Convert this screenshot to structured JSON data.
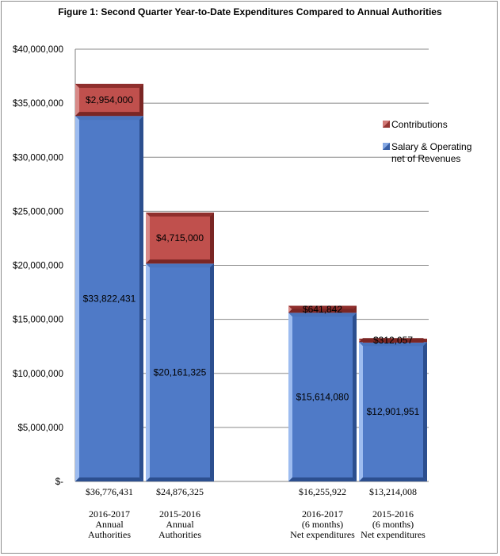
{
  "chart_data": {
    "type": "bar",
    "stacked": true,
    "title": "Figure 1: Second Quarter Year-to-Date Expenditures Compared to Annual Authorities",
    "categories": [
      [
        "2016-2017",
        "Annual",
        "Authorities"
      ],
      [
        "2015-2016",
        "Annual",
        "Authorities"
      ],
      [
        "2016-2017",
        "(6 months)",
        "Net expenditures"
      ],
      [
        "2015-2016",
        "(6 months)",
        "Net expenditures"
      ]
    ],
    "totals": [
      36776431,
      24876325,
      16255922,
      13214008
    ],
    "total_labels": [
      "$36,776,431",
      "$24,876,325",
      "$16,255,922",
      "$13,214,008"
    ],
    "series": [
      {
        "name": "Salary & Operating net of Revenues",
        "legend_lines": [
          "Salary & Operating",
          "net of Revenues"
        ],
        "color": "#4f7ac7",
        "values": [
          33822431,
          20161325,
          15614080,
          12901951
        ],
        "labels": [
          "$33,822,431",
          "$20,161,325",
          "$15,614,080",
          "$12,901,951"
        ]
      },
      {
        "name": "Contributions",
        "legend_lines": [
          "Contributions"
        ],
        "color": "#c0504d",
        "values": [
          2954000,
          4715000,
          641842,
          312057
        ],
        "labels": [
          "$2,954,000",
          "$4,715,000",
          "$641,842",
          "$312,057"
        ]
      }
    ],
    "ylim": [
      0,
      40000000
    ],
    "yticks": [
      0,
      5000000,
      10000000,
      15000000,
      20000000,
      25000000,
      30000000,
      35000000,
      40000000
    ],
    "ytick_labels": [
      "$-",
      "$5,000,000",
      "$10,000,000",
      "$15,000,000",
      "$20,000,000",
      "$25,000,000",
      "$30,000,000",
      "$35,000,000",
      "$40,000,000"
    ],
    "grid": true,
    "legend_position": "right",
    "xlabel": "",
    "ylabel": ""
  }
}
